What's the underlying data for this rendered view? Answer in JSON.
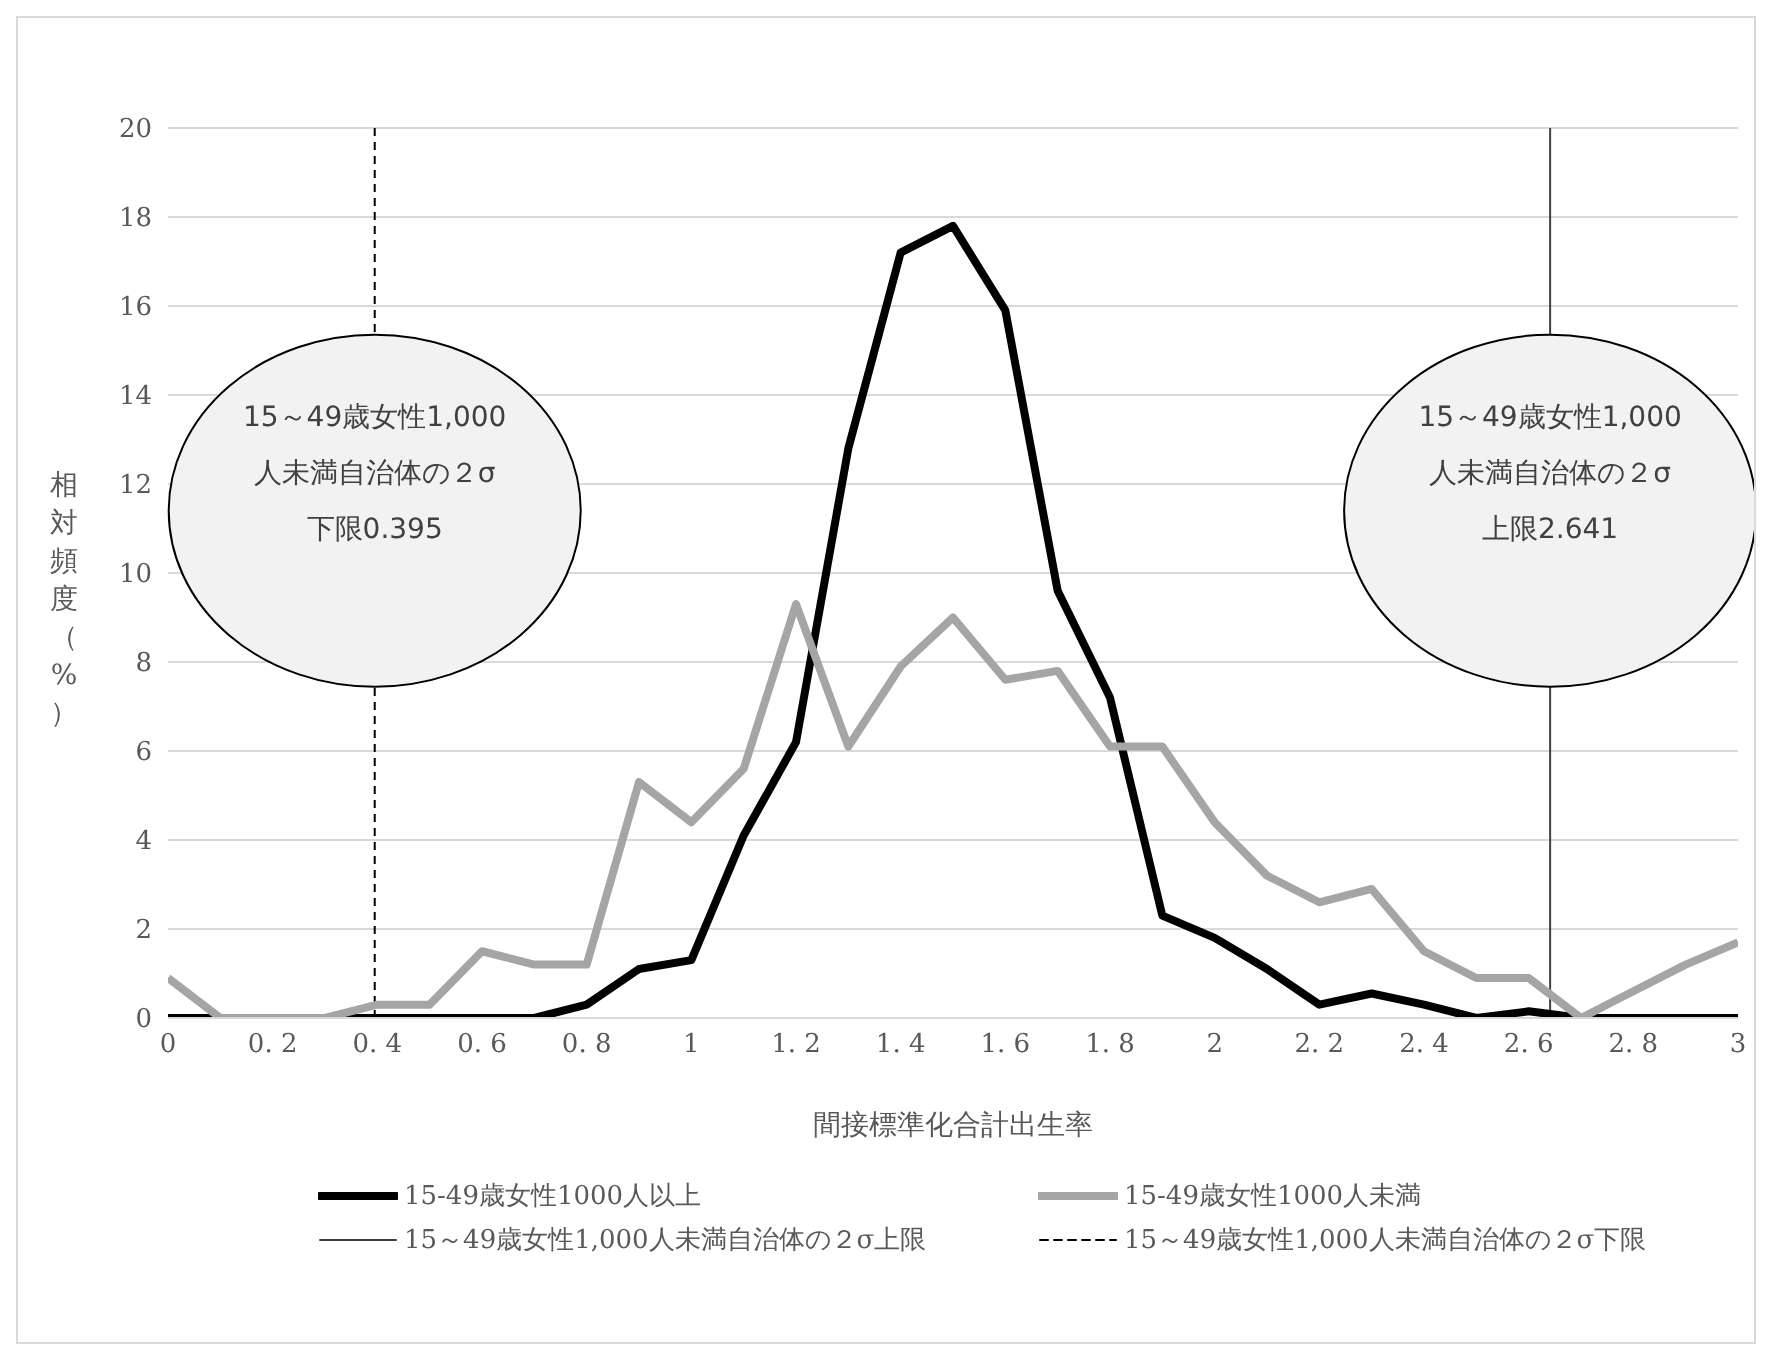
{
  "chart_data": {
    "type": "line",
    "xlabel": "間接標準化合計出生率",
    "ylabel": "相対頻度（%）",
    "x": [
      0,
      0.1,
      0.2,
      0.3,
      0.4,
      0.5,
      0.6,
      0.7,
      0.8,
      0.9,
      1.0,
      1.1,
      1.2,
      1.3,
      1.4,
      1.5,
      1.6,
      1.7,
      1.8,
      1.9,
      2.0,
      2.1,
      2.2,
      2.3,
      2.4,
      2.5,
      2.6,
      2.7,
      2.8,
      2.9,
      3.0
    ],
    "series": [
      {
        "name": "15-49歳女性1000人以上",
        "color": "#000000",
        "values": [
          0,
          0,
          0,
          0,
          0,
          0,
          0,
          0,
          0.3,
          1.1,
          1.3,
          4.1,
          6.2,
          12.8,
          17.2,
          17.8,
          15.9,
          9.6,
          7.2,
          2.3,
          1.8,
          1.1,
          0.3,
          0.55,
          0.3,
          0,
          0.15,
          0,
          0,
          0,
          0
        ]
      },
      {
        "name": "15-49歳女性1000人未満",
        "color": "#a5a5a5",
        "values": [
          0.9,
          0,
          0,
          0,
          0.3,
          0.3,
          1.5,
          1.2,
          1.2,
          5.3,
          4.4,
          5.6,
          9.3,
          6.1,
          7.9,
          9.0,
          7.6,
          7.8,
          6.1,
          6.1,
          4.4,
          3.2,
          2.6,
          2.9,
          1.5,
          0.9,
          0.9,
          0,
          0.6,
          1.2,
          1.7
        ]
      }
    ],
    "ref_lines": [
      {
        "axis": "x",
        "value": 2.641,
        "label": "15～49歳女性1,000人未満自治体の２σ上限",
        "color": "#404040",
        "line_style": "solid"
      },
      {
        "axis": "x",
        "value": 0.395,
        "label": "15～49歳女性1,000人未満自治体の２σ下限",
        "color": "#000000",
        "line_style": "dashed"
      }
    ],
    "annotations": [
      {
        "text": "15～49歳女性1,000人未満自治体の２σ下限0.395",
        "x": 0.395,
        "y": 11.4
      },
      {
        "text": "15～49歳女性1,000人未満自治体の２σ上限2.641",
        "x": 2.641,
        "y": 11.4
      }
    ],
    "xlim": [
      0,
      3
    ],
    "xticks": [
      0,
      {
        "value": 0.2,
        "label": "0. 2"
      },
      {
        "value": 0.4,
        "label": "0. 4"
      },
      {
        "value": 0.6,
        "label": "0. 6"
      },
      {
        "value": 0.8,
        "label": "0. 8"
      },
      1,
      {
        "value": 1.2,
        "label": "1. 2"
      },
      {
        "value": 1.4,
        "label": "1. 4"
      },
      {
        "value": 1.6,
        "label": "1. 6"
      },
      {
        "value": 1.8,
        "label": "1. 8"
      },
      2,
      {
        "value": 2.2,
        "label": "2. 2"
      },
      {
        "value": 2.4,
        "label": "2. 4"
      },
      {
        "value": 2.6,
        "label": "2. 6"
      },
      {
        "value": 2.8,
        "label": "2. 8"
      },
      3
    ],
    "ylim": [
      0,
      20
    ],
    "yticks": [
      0,
      2,
      4,
      6,
      8,
      10,
      12,
      14,
      16,
      18,
      20
    ],
    "grid": "y",
    "legend": "bottom",
    "marker": "none",
    "line_style": "solid"
  }
}
